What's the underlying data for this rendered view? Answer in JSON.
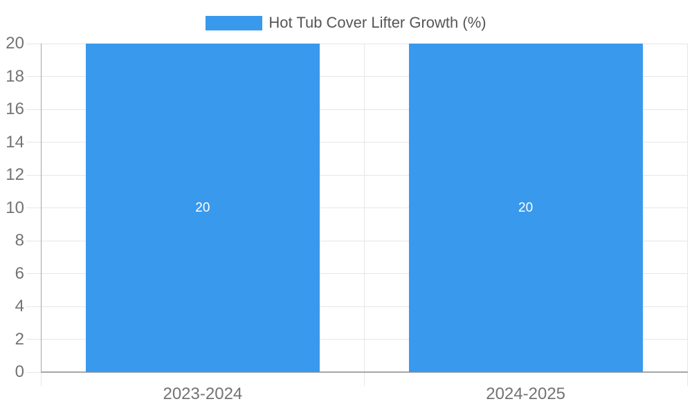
{
  "legend": {
    "label": "Hot Tub Cover Lifter Growth (%)"
  },
  "chart_data": {
    "type": "bar",
    "title": "Hot Tub Cover Lifter Growth (%)",
    "categories": [
      "2023-2024",
      "2024-2025"
    ],
    "series": [
      {
        "name": "Hot Tub Cover Lifter Growth (%)",
        "values": [
          20,
          20
        ]
      }
    ],
    "value_labels": [
      "20",
      "20"
    ],
    "xlabel": "",
    "ylabel": "",
    "ylim": [
      0,
      20
    ],
    "yticks": [
      0,
      2,
      4,
      6,
      8,
      10,
      12,
      14,
      16,
      18,
      20
    ],
    "grid": true,
    "legend_position": "top-center",
    "colors": {
      "bar": "#3999EC",
      "value_label": "#FFFFFF",
      "grid": "#E6E6E6",
      "axis": "#A6A6A6",
      "tick_label": "#737373",
      "legend_text": "#555555"
    }
  }
}
